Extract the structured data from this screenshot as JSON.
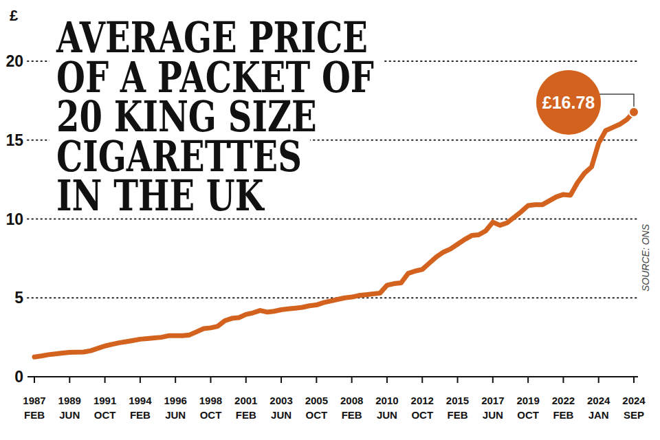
{
  "chart_data": {
    "type": "line",
    "title": "AVERAGE PRICE\nOF A PACKET OF\n20 KING SIZE\nCIGARETTES\nIN THE UK",
    "y_label": "£",
    "source": "SOURCE: ONS",
    "annotation": "£16.78",
    "color": "#d2621d",
    "ylim": [
      0,
      20
    ],
    "yticks": [
      0,
      5,
      10,
      15,
      20
    ],
    "grid": true,
    "categories": [
      "1987\nFEB",
      null,
      null,
      null,
      null,
      "1989\nJUN",
      null,
      null,
      null,
      null,
      "1991\nOCT",
      null,
      null,
      null,
      null,
      "1994\nFEB",
      null,
      null,
      null,
      null,
      "1996\nJUN",
      null,
      null,
      null,
      null,
      "1998\nOCT",
      null,
      null,
      null,
      null,
      "2001\nFEB",
      null,
      null,
      null,
      null,
      "2003\nJUN",
      null,
      null,
      null,
      null,
      "2005\nOCT",
      null,
      null,
      null,
      null,
      "2008\nFEB",
      null,
      null,
      null,
      null,
      "2010\nJUN",
      null,
      null,
      null,
      null,
      "2012\nOCT",
      null,
      null,
      null,
      null,
      "2015\nFEB",
      null,
      null,
      null,
      null,
      "2017\nJUN",
      null,
      null,
      null,
      null,
      "2019\nOCT",
      null,
      null,
      null,
      null,
      "2022\nFEB",
      null,
      null,
      null,
      null,
      "2024\nJAN",
      null,
      null,
      null,
      null,
      "2024\nSEP"
    ],
    "values": [
      1.25,
      1.32,
      1.4,
      1.45,
      1.5,
      1.55,
      1.56,
      1.57,
      1.65,
      1.8,
      1.95,
      2.05,
      2.15,
      2.22,
      2.3,
      2.38,
      2.42,
      2.46,
      2.5,
      2.6,
      2.6,
      2.6,
      2.65,
      2.85,
      3.05,
      3.1,
      3.2,
      3.55,
      3.7,
      3.75,
      3.95,
      4.05,
      4.2,
      4.1,
      4.15,
      4.25,
      4.3,
      4.35,
      4.4,
      4.5,
      4.55,
      4.7,
      4.8,
      4.9,
      5.0,
      5.05,
      5.15,
      5.2,
      5.25,
      5.3,
      5.8,
      5.9,
      5.95,
      6.55,
      6.7,
      6.8,
      7.2,
      7.6,
      7.9,
      8.1,
      8.4,
      8.7,
      8.95,
      9.0,
      9.25,
      9.8,
      9.6,
      9.75,
      10.1,
      10.45,
      10.85,
      10.9,
      10.9,
      11.15,
      11.4,
      11.55,
      11.5,
      12.3,
      12.9,
      13.3,
      14.8,
      15.6,
      15.8,
      16.0,
      16.3,
      16.78
    ]
  }
}
